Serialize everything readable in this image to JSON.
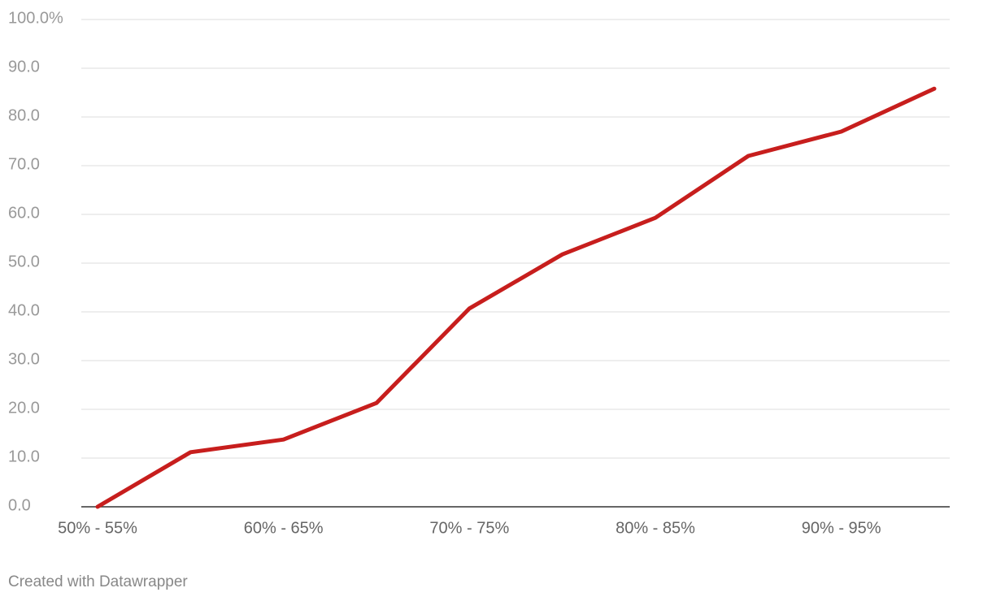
{
  "chart_data": {
    "type": "line",
    "categories": [
      "50% - 55%",
      null,
      "60% - 65%",
      null,
      "70% - 75%",
      null,
      "80% - 85%",
      null,
      "90% - 95%",
      null
    ],
    "series": [
      {
        "name": null,
        "color": "#c71e1d",
        "values": [
          0,
          11.2,
          13.8,
          21.3,
          40.7,
          51.8,
          59.3,
          72.0,
          77.0,
          85.8
        ]
      }
    ],
    "ylim": [
      0,
      100
    ],
    "yticks": [
      {
        "value": 0,
        "label": "0.0"
      },
      {
        "value": 10,
        "label": "10.0"
      },
      {
        "value": 20,
        "label": "20.0"
      },
      {
        "value": 30,
        "label": "30.0"
      },
      {
        "value": 40,
        "label": "40.0"
      },
      {
        "value": 50,
        "label": "50.0"
      },
      {
        "value": 60,
        "label": "60.0"
      },
      {
        "value": 70,
        "label": "70.0"
      },
      {
        "value": 80,
        "label": "80.0"
      },
      {
        "value": 90,
        "label": "90.0"
      },
      {
        "value": 100,
        "label": "100.0%"
      }
    ],
    "grid": true
  },
  "footer": "Created with Datawrapper"
}
